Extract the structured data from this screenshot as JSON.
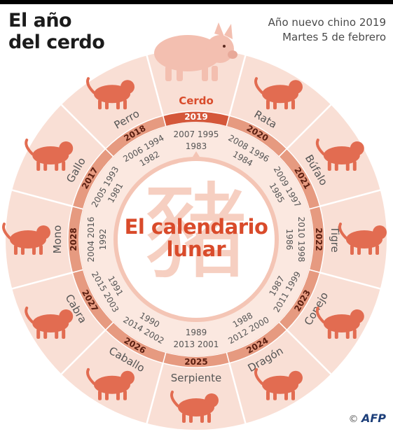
{
  "header": {
    "title_line1": "El año",
    "title_line2": "del cerdo",
    "subtitle_line1": "Año nuevo chino 2019",
    "subtitle_line2": "Martes 5 de febrero"
  },
  "center": {
    "line1": "El calendario",
    "line2": "lunar",
    "character": "豬"
  },
  "animals": [
    {
      "name": "Cerdo",
      "year": "2019",
      "years_a": "2007 1995",
      "years_b": "1983",
      "highlight": true
    },
    {
      "name": "Rata",
      "year": "2020",
      "years_a": "2008 1996",
      "years_b": "1984"
    },
    {
      "name": "Búfalo",
      "year": "2021",
      "years_a": "2009 1997",
      "years_b": "1985"
    },
    {
      "name": "Tigre",
      "year": "2022",
      "years_a": "2010 1998",
      "years_b": "1986"
    },
    {
      "name": "Conejo",
      "year": "2023",
      "years_a": "2011 1999",
      "years_b": "1987"
    },
    {
      "name": "Dragón",
      "year": "2024",
      "years_a": "2012 2000",
      "years_b": "1988"
    },
    {
      "name": "Serpiente",
      "year": "2025",
      "years_a": "2013 2001",
      "years_b": "1989"
    },
    {
      "name": "Caballo",
      "year": "2026",
      "years_a": "2014 2002",
      "years_b": "1990"
    },
    {
      "name": "Cabra",
      "year": "2027",
      "years_a": "2015 2003",
      "years_b": "1991"
    },
    {
      "name": "Mono",
      "year": "2028",
      "years_a": "2004 2016",
      "years_b": "1992"
    },
    {
      "name": "Gallo",
      "year": "2017",
      "years_a": "2005 1993",
      "years_b": "1981"
    },
    {
      "name": "Perro",
      "year": "2018",
      "years_a": "2006 1994",
      "years_b": "1982"
    }
  ],
  "credit": {
    "symbol": "©",
    "agency": "AFP"
  },
  "colors": {
    "outer_ring": "#f9dfd5",
    "year_band": "#e69a80",
    "year_band_highlight": "#d4573a",
    "inner_circle": "#ffffff",
    "pig": "#f3bfb0",
    "animal": "#e26c51",
    "accent_text": "#d94b2b",
    "character": "#f6cfc1"
  }
}
